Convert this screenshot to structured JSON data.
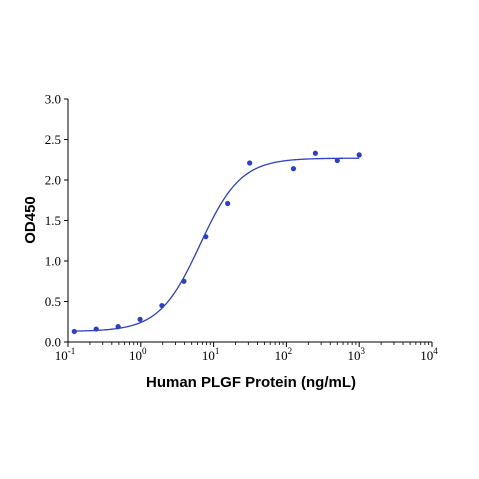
{
  "chart_data": {
    "type": "scatter",
    "title": "",
    "xlabel": "Human PLGF Protein (ng/mL)",
    "ylabel": "OD450",
    "x_scale": "log",
    "xlim": [
      0.1,
      10000
    ],
    "ylim": [
      0,
      3.0
    ],
    "x_ticks": [
      {
        "value": 0.1,
        "base": "10",
        "exp": "-1"
      },
      {
        "value": 1,
        "base": "10",
        "exp": "0"
      },
      {
        "value": 10,
        "base": "10",
        "exp": "1"
      },
      {
        "value": 100,
        "base": "10",
        "exp": "2"
      },
      {
        "value": 1000,
        "base": "10",
        "exp": "3"
      },
      {
        "value": 10000,
        "base": "10",
        "exp": "4"
      }
    ],
    "y_ticks": [
      "0.0",
      "0.5",
      "1.0",
      "1.5",
      "2.0",
      "2.5",
      "3.0"
    ],
    "grid": false,
    "legend": "none",
    "colors": {
      "series": "#2b3fc8",
      "axis": "#000000"
    },
    "series": [
      {
        "x": [
          0.122,
          0.244,
          0.488,
          0.977,
          1.95,
          3.91,
          7.81,
          15.6,
          31.3,
          125,
          250,
          500,
          1000
        ],
        "y": [
          0.13,
          0.16,
          0.19,
          0.28,
          0.45,
          0.75,
          1.3,
          1.71,
          2.21,
          2.14,
          2.33,
          2.24,
          2.31
        ],
        "fit": {
          "model": "4PL",
          "bottom": 0.13,
          "top": 2.27,
          "ec50": 6.5,
          "hill": 1.55,
          "x_range": [
            0.122,
            1000
          ]
        }
      }
    ]
  }
}
